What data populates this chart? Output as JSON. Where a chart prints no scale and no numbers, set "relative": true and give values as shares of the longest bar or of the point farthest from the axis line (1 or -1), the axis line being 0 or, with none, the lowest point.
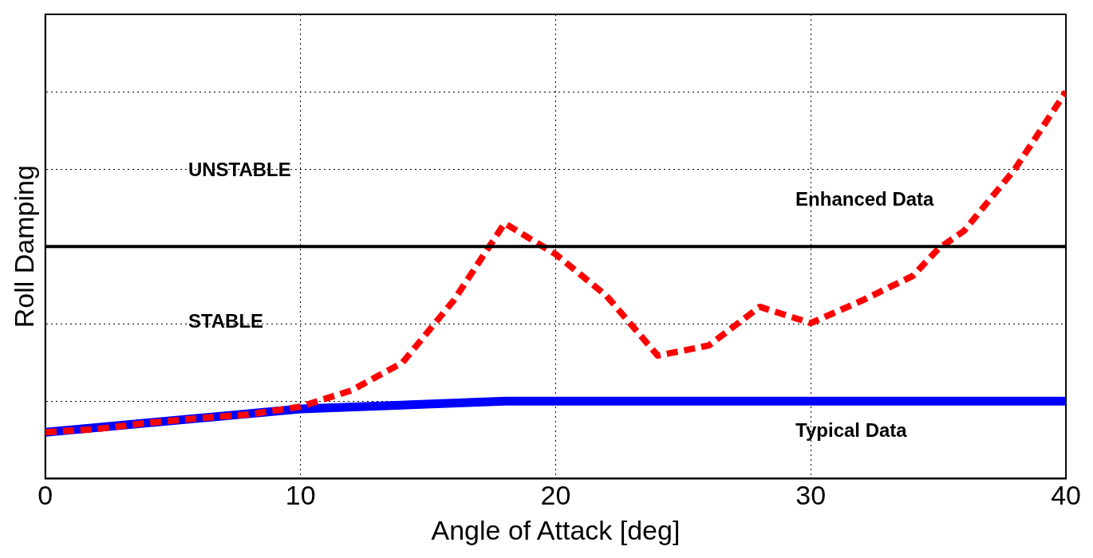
{
  "chart_data": {
    "type": "line",
    "xlabel": "Angle of Attack [deg]",
    "ylabel": "Roll Damping",
    "relative": true,
    "xlim": [
      0,
      40
    ],
    "xticks": [
      0,
      10,
      20,
      30,
      40
    ],
    "grid": true,
    "legend": false,
    "marker": "none",
    "series": [
      {
        "name": "Typical Data",
        "color": "#0000ff",
        "line_style": "solid",
        "x": [
          0,
          10,
          18,
          40
        ],
        "values": [
          0.12,
          0.18,
          0.2,
          0.2
        ]
      },
      {
        "name": "Enhanced Data",
        "color": "#ff0000",
        "line_style": "dashed",
        "x": [
          0,
          2,
          4,
          6,
          8,
          10,
          12,
          14,
          16,
          18,
          20,
          22,
          24,
          26,
          28,
          30,
          32,
          34,
          35,
          36,
          38,
          40
        ],
        "values": [
          0.12,
          0.128,
          0.144,
          0.156,
          0.166,
          0.186,
          0.228,
          0.3,
          0.46,
          0.66,
          0.58,
          0.472,
          0.318,
          0.344,
          0.444,
          0.402,
          0.46,
          0.524,
          0.594,
          0.64,
          0.8,
          1
        ]
      }
    ],
    "ref_lines": [
      {
        "axis": "y",
        "value": 0.6,
        "color": "#000000",
        "line_style": "solid"
      }
    ],
    "annotations": [
      "UNSTABLE",
      "STABLE"
    ]
  }
}
